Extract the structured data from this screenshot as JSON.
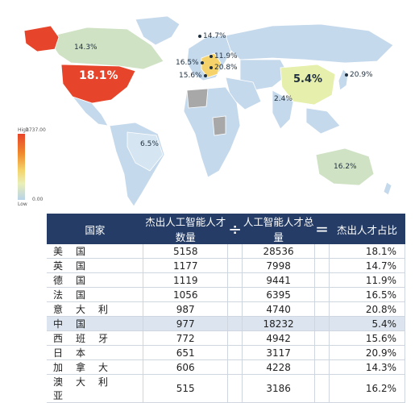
{
  "map": {
    "labels": {
      "usa": "18.1%",
      "canada": "14.3%",
      "uk": "14.7%",
      "france": "16.5%",
      "germany": "11.9%",
      "italy": "20.8%",
      "spain": "15.6%",
      "china": "5.4%",
      "japan": "20.9%",
      "india": "2.4%",
      "brazil": "6.5%",
      "australia": "16.2%"
    },
    "legend": {
      "high_label": "High",
      "high_value": "2737.00",
      "low_label": "Low",
      "low_value": "0.00"
    },
    "colors": {
      "usa": "#e7452b",
      "alaska": "#e7452b",
      "canada": "#cfe2c4",
      "china": "#e6efab",
      "europe_hot": "#f5d36a",
      "base": "#c5d9ec",
      "grey": "#a8a8a8",
      "ocean": "#ffffff"
    }
  },
  "table": {
    "headers": {
      "country": "国家",
      "top_talent": "杰出人工智能人才数量",
      "divide": "÷",
      "total": "人工智能人才总量",
      "equals": "=",
      "ratio": "杰出人才占比"
    },
    "rows": [
      {
        "country": "美国",
        "top": "5158",
        "total": "28536",
        "ratio": "18.1%"
      },
      {
        "country": "英国",
        "top": "1177",
        "total": "7998",
        "ratio": "14.7%"
      },
      {
        "country": "德国",
        "top": "1119",
        "total": "9441",
        "ratio": "11.9%"
      },
      {
        "country": "法国",
        "top": "1056",
        "total": "6395",
        "ratio": "16.5%"
      },
      {
        "country": "意大利",
        "top": "987",
        "total": "4740",
        "ratio": "20.8%"
      },
      {
        "country": "中国",
        "top": "977",
        "total": "18232",
        "ratio": "5.4%",
        "highlight": true
      },
      {
        "country": "西班牙",
        "top": "772",
        "total": "4942",
        "ratio": "15.6%"
      },
      {
        "country": "日本",
        "top": "651",
        "total": "3117",
        "ratio": "20.9%"
      },
      {
        "country": "加拿大",
        "top": "606",
        "total": "4228",
        "ratio": "14.3%"
      },
      {
        "country": "澳大利亚",
        "top": "515",
        "total": "3186",
        "ratio": "16.2%"
      }
    ]
  }
}
